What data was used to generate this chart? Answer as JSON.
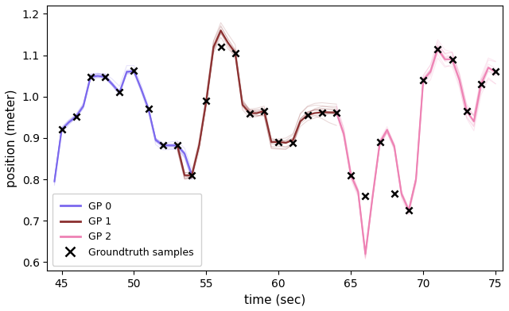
{
  "xlabel": "time (sec)",
  "ylabel": "position (meter)",
  "xlim": [
    44.0,
    75.5
  ],
  "ylim": [
    0.58,
    1.22
  ],
  "xticks": [
    45,
    50,
    55,
    60,
    65,
    70,
    75
  ],
  "yticks": [
    0.6,
    0.7,
    0.8,
    0.9,
    1.0,
    1.1,
    1.2
  ],
  "gp0_color": "#7B68EE",
  "gp1_color": "#8B3030",
  "gp2_color": "#EE82B4",
  "gt_color": "black",
  "legend_labels": [
    "GP 0",
    "GP 1",
    "GP 2",
    "Groundtruth samples"
  ],
  "gp0_x": [
    44.5,
    45.0,
    45.5,
    46.0,
    46.5,
    47.0,
    47.5,
    48.0,
    48.5,
    49.0,
    49.5,
    50.0,
    50.5,
    51.0,
    51.5,
    52.0,
    52.5,
    53.0,
    53.5,
    54.0
  ],
  "gp0_y": [
    0.795,
    0.92,
    0.938,
    0.952,
    0.977,
    1.048,
    1.05,
    1.048,
    1.03,
    1.01,
    1.06,
    1.062,
    1.018,
    0.97,
    0.895,
    0.882,
    0.882,
    0.882,
    0.862,
    0.81
  ],
  "gp0_std": [
    0.004,
    0.004,
    0.004,
    0.004,
    0.004,
    0.004,
    0.004,
    0.004,
    0.004,
    0.004,
    0.004,
    0.004,
    0.004,
    0.004,
    0.004,
    0.004,
    0.004,
    0.004,
    0.004,
    0.004
  ],
  "gp1_x": [
    53.0,
    53.5,
    54.0,
    54.5,
    55.0,
    55.5,
    56.0,
    56.5,
    57.0,
    57.5,
    58.0,
    58.5,
    59.0,
    59.5,
    60.0,
    60.5,
    61.0,
    61.5,
    62.0,
    62.5,
    63.0,
    63.5,
    64.0
  ],
  "gp1_y": [
    0.882,
    0.81,
    0.81,
    0.882,
    0.99,
    1.12,
    1.16,
    1.13,
    1.105,
    0.98,
    0.96,
    0.96,
    0.965,
    0.89,
    0.89,
    0.888,
    0.895,
    0.94,
    0.955,
    0.96,
    0.962,
    0.962,
    0.962
  ],
  "gp1_std": [
    0.005,
    0.005,
    0.005,
    0.005,
    0.008,
    0.008,
    0.008,
    0.008,
    0.008,
    0.008,
    0.008,
    0.008,
    0.008,
    0.008,
    0.008,
    0.008,
    0.008,
    0.008,
    0.008,
    0.008,
    0.008,
    0.008,
    0.008
  ],
  "gp2_x": [
    64.0,
    64.5,
    65.0,
    65.5,
    66.0,
    66.5,
    67.0,
    67.5,
    68.0,
    68.5,
    69.0,
    69.5,
    70.0,
    70.5,
    71.0,
    71.5,
    72.0,
    72.5,
    73.0,
    73.5,
    74.0,
    74.5,
    75.0
  ],
  "gp2_y": [
    0.962,
    0.91,
    0.81,
    0.77,
    0.62,
    0.76,
    0.89,
    0.92,
    0.88,
    0.765,
    0.725,
    0.8,
    1.04,
    1.06,
    1.115,
    1.09,
    1.09,
    1.04,
    0.965,
    0.94,
    1.03,
    1.07,
    1.06
  ],
  "gp2_std": [
    0.005,
    0.005,
    0.005,
    0.005,
    0.005,
    0.005,
    0.005,
    0.005,
    0.005,
    0.005,
    0.005,
    0.005,
    0.01,
    0.01,
    0.01,
    0.01,
    0.01,
    0.01,
    0.01,
    0.01,
    0.01,
    0.01,
    0.01
  ],
  "gt_x": [
    45.0,
    46.0,
    47.0,
    48.0,
    49.0,
    50.0,
    51.0,
    52.0,
    53.0,
    54.0,
    55.0,
    56.0,
    57.0,
    58.0,
    59.0,
    60.0,
    61.0,
    62.0,
    63.0,
    64.0,
    65.0,
    66.0,
    67.0,
    68.0,
    69.0,
    70.0,
    71.0,
    72.0,
    73.0,
    74.0,
    75.0
  ],
  "gt_y": [
    0.92,
    0.952,
    1.048,
    1.048,
    1.01,
    1.062,
    0.97,
    0.882,
    0.882,
    0.81,
    0.99,
    1.12,
    1.105,
    0.96,
    0.965,
    0.89,
    0.888,
    0.955,
    0.962,
    0.962,
    0.81,
    0.76,
    0.89,
    0.765,
    0.725,
    1.04,
    1.115,
    1.09,
    0.965,
    1.03,
    1.06
  ],
  "n_samples": 12,
  "sample_alpha": 0.18,
  "sample_lw": 0.8,
  "main_lw": 1.5
}
